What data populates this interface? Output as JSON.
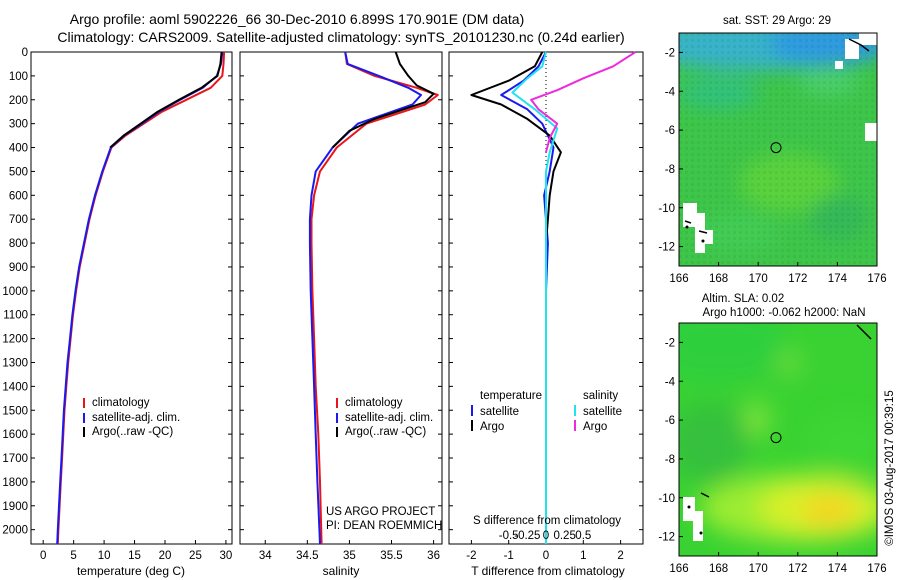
{
  "header": {
    "line1": "Argo profile: aoml 5902226_66 30-Dec-2010 6.899S 170.901E (DM data)",
    "line2": "Climatology: CARS2009. Satellite-adjusted climatology: synTS_20101230.nc (0.24d earlier)"
  },
  "colors": {
    "climatology": "#e8161b",
    "satellite": "#1a1aee",
    "argo": "#000000",
    "salinity_satellite": "#22e2ee",
    "salinity_argo": "#ee2bdc"
  },
  "chart_data": [
    {
      "id": "temperature",
      "type": "line",
      "xlabel": "temperature (deg C)",
      "ylabel": "",
      "xlim": [
        -2,
        31
      ],
      "ylim": [
        2060,
        0
      ],
      "xticks": [
        0,
        5,
        10,
        15,
        20,
        25,
        30
      ],
      "yticks": [
        0,
        100,
        200,
        300,
        400,
        500,
        600,
        700,
        800,
        900,
        1000,
        1100,
        1200,
        1300,
        1400,
        1500,
        1600,
        1700,
        1800,
        1900,
        2000
      ],
      "legend": [
        "climatology",
        "satellite-adj. clim.",
        "Argo(..raw -QC)"
      ],
      "series": [
        {
          "name": "climatology",
          "color": "#e8161b",
          "points": [
            [
              29.7,
              0
            ],
            [
              29.6,
              50
            ],
            [
              29.4,
              100
            ],
            [
              27.5,
              150
            ],
            [
              23.5,
              200
            ],
            [
              19.5,
              250
            ],
            [
              16.5,
              300
            ],
            [
              13.5,
              350
            ],
            [
              11.2,
              400
            ],
            [
              9.8,
              500
            ],
            [
              8.6,
              600
            ],
            [
              7.6,
              700
            ],
            [
              6.8,
              800
            ],
            [
              6.0,
              900
            ],
            [
              5.4,
              1000
            ],
            [
              4.9,
              1100
            ],
            [
              4.5,
              1200
            ],
            [
              4.1,
              1300
            ],
            [
              3.8,
              1400
            ],
            [
              3.5,
              1500
            ],
            [
              3.3,
              1600
            ],
            [
              3.1,
              1700
            ],
            [
              2.9,
              1800
            ],
            [
              2.7,
              1900
            ],
            [
              2.5,
              2000
            ],
            [
              2.4,
              2060
            ]
          ]
        },
        {
          "name": "satellite",
          "color": "#1a1aee",
          "points": [
            [
              29.4,
              0
            ],
            [
              29.2,
              50
            ],
            [
              28.5,
              100
            ],
            [
              26.2,
              150
            ],
            [
              22.5,
              200
            ],
            [
              19.0,
              250
            ],
            [
              16.2,
              300
            ],
            [
              13.3,
              350
            ],
            [
              11.1,
              400
            ],
            [
              9.7,
              500
            ],
            [
              8.5,
              600
            ],
            [
              7.5,
              700
            ],
            [
              6.7,
              800
            ],
            [
              5.9,
              900
            ],
            [
              5.3,
              1000
            ],
            [
              4.8,
              1100
            ],
            [
              4.4,
              1200
            ],
            [
              4.0,
              1300
            ],
            [
              3.7,
              1400
            ],
            [
              3.4,
              1500
            ],
            [
              3.2,
              1600
            ],
            [
              3.0,
              1700
            ],
            [
              2.8,
              1800
            ],
            [
              2.6,
              1900
            ],
            [
              2.4,
              2000
            ],
            [
              2.3,
              2060
            ]
          ]
        },
        {
          "name": "Argo",
          "color": "#000000",
          "points": [
            [
              29.3,
              0
            ],
            [
              29.1,
              50
            ],
            [
              28.6,
              100
            ],
            [
              26.0,
              150
            ],
            [
              22.3,
              200
            ],
            [
              18.8,
              250
            ],
            [
              16.0,
              300
            ],
            [
              13.2,
              350
            ],
            [
              11.0,
              400
            ]
          ]
        }
      ]
    },
    {
      "id": "salinity",
      "type": "line",
      "xlabel": "salinity",
      "ylabel": "",
      "xlim": [
        33.7,
        36.1
      ],
      "ylim": [
        2060,
        0
      ],
      "xticks": [
        34,
        34.5,
        35,
        35.5,
        36
      ],
      "legend": [
        "climatology",
        "satellite-adj. clim.",
        "Argo(..raw -QC)"
      ],
      "annotation": [
        "US ARGO PROJECT",
        "PI: DEAN ROEMMICH"
      ],
      "series": [
        {
          "name": "climatology",
          "color": "#e8161b",
          "points": [
            [
              34.95,
              0
            ],
            [
              34.97,
              50
            ],
            [
              35.3,
              100
            ],
            [
              35.8,
              150
            ],
            [
              36.05,
              180
            ],
            [
              35.9,
              220
            ],
            [
              35.2,
              300
            ],
            [
              34.85,
              400
            ],
            [
              34.65,
              500
            ],
            [
              34.58,
              600
            ],
            [
              34.55,
              700
            ],
            [
              34.55,
              800
            ],
            [
              34.56,
              1000
            ],
            [
              34.58,
              1200
            ],
            [
              34.6,
              1400
            ],
            [
              34.63,
              1600
            ],
            [
              34.65,
              1800
            ],
            [
              34.67,
              2060
            ]
          ]
        },
        {
          "name": "satellite",
          "color": "#1a1aee",
          "points": [
            [
              34.95,
              0
            ],
            [
              34.98,
              50
            ],
            [
              35.35,
              100
            ],
            [
              35.7,
              150
            ],
            [
              35.85,
              180
            ],
            [
              35.75,
              220
            ],
            [
              35.1,
              300
            ],
            [
              34.8,
              400
            ],
            [
              34.6,
              500
            ],
            [
              34.55,
              600
            ],
            [
              34.53,
              700
            ],
            [
              34.53,
              800
            ],
            [
              34.54,
              1000
            ],
            [
              34.56,
              1200
            ],
            [
              34.58,
              1400
            ],
            [
              34.6,
              1600
            ],
            [
              34.62,
              1800
            ],
            [
              34.65,
              2060
            ]
          ]
        },
        {
          "name": "Argo",
          "color": "#000000",
          "points": [
            [
              35.55,
              0
            ],
            [
              35.6,
              50
            ],
            [
              35.7,
              100
            ],
            [
              35.8,
              140
            ],
            [
              36.0,
              175
            ],
            [
              35.9,
              210
            ],
            [
              35.3,
              280
            ],
            [
              35.0,
              330
            ],
            [
              34.8,
              400
            ]
          ]
        }
      ]
    },
    {
      "id": "difference",
      "type": "line",
      "xlabel": "T difference from climatology",
      "xlabel_top": "S difference from climatology",
      "xlim": [
        -2.6,
        2.6
      ],
      "ylim": [
        2060,
        0
      ],
      "t_ticks": [
        -2,
        -1,
        0,
        1,
        2
      ],
      "s_ticks": [
        -0.5,
        -0.25,
        0,
        0.25,
        0.5
      ],
      "legend_titles": [
        "temperature",
        "salinity"
      ],
      "legend": [
        "satellite",
        "Argo",
        "satellite",
        "Argo"
      ],
      "series": [
        {
          "name": "temperature satellite",
          "color": "#1a1aee",
          "points": [
            [
              0,
              0
            ],
            [
              -0.2,
              60
            ],
            [
              -0.6,
              120
            ],
            [
              -1.2,
              180
            ],
            [
              -0.5,
              240
            ],
            [
              -0.1,
              300
            ],
            [
              0.2,
              400
            ],
            [
              0.1,
              500
            ],
            [
              -0.05,
              600
            ],
            [
              0.05,
              800
            ],
            [
              0,
              1000
            ],
            [
              0,
              1500
            ],
            [
              0,
              2060
            ]
          ]
        },
        {
          "name": "temperature Argo",
          "color": "#000000",
          "points": [
            [
              -0.1,
              0
            ],
            [
              -0.3,
              60
            ],
            [
              -1.0,
              120
            ],
            [
              -2.0,
              180
            ],
            [
              -1.2,
              220
            ],
            [
              -0.5,
              280
            ],
            [
              0.1,
              350
            ],
            [
              0.4,
              420
            ],
            [
              0.2,
              500
            ],
            [
              0.1,
              600
            ],
            [
              0.05,
              700
            ],
            [
              0,
              800
            ]
          ]
        },
        {
          "name": "salinity satellite",
          "color": "#22e2ee",
          "points": [
            [
              0,
              0
            ],
            [
              -0.1,
              60
            ],
            [
              -0.5,
              110
            ],
            [
              -0.9,
              170
            ],
            [
              -0.3,
              240
            ],
            [
              0.3,
              320
            ],
            [
              0.1,
              420
            ],
            [
              0,
              500
            ],
            [
              0,
              700
            ],
            [
              0,
              1000
            ],
            [
              0,
              1500
            ],
            [
              0,
              2060
            ]
          ]
        },
        {
          "name": "salinity Argo",
          "color": "#ee2bdc",
          "points": [
            [
              2.4,
              0
            ],
            [
              1.8,
              60
            ],
            [
              1.0,
              110
            ],
            [
              0.3,
              160
            ],
            [
              -0.4,
              200
            ],
            [
              -0.2,
              240
            ],
            [
              0.3,
              300
            ],
            [
              0.1,
              360
            ],
            [
              0,
              420
            ]
          ]
        }
      ]
    },
    {
      "id": "sst_map",
      "type": "heatmap",
      "title": "sat. SST: 29 Argo: 29",
      "xlim": [
        166,
        176
      ],
      "ylim": [
        -13,
        -1
      ],
      "xticks": [
        166,
        168,
        170,
        172,
        174,
        176
      ],
      "yticks": [
        -2,
        -4,
        -6,
        -8,
        -10,
        -12
      ],
      "marker": [
        170.9,
        -6.9
      ]
    },
    {
      "id": "sla_map",
      "type": "heatmap",
      "title": [
        "Altim. SLA: 0.02",
        "Argo h1000: -0.062 h2000: NaN"
      ],
      "xlim": [
        166,
        176
      ],
      "ylim": [
        -13,
        -1
      ],
      "xticks": [
        166,
        168,
        170,
        172,
        174,
        176
      ],
      "yticks": [
        -2,
        -4,
        -6,
        -8,
        -10,
        -12
      ],
      "marker": [
        170.9,
        -6.9
      ]
    }
  ],
  "footer": {
    "stamp": "©IMOS 03-Aug-2017 00:39:15"
  }
}
